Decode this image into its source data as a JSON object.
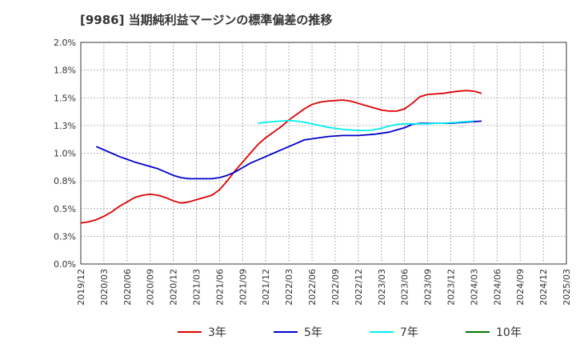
{
  "title": "[9986]  当期純利益マージンの標準偏差の推移",
  "chart_data": {
    "type": "line",
    "title": "[9986]  当期純利益マージンの標準偏差の推移",
    "x_ticks": [
      "2019/12",
      "2020/03",
      "2020/06",
      "2020/09",
      "2020/12",
      "2021/03",
      "2021/06",
      "2021/09",
      "2021/12",
      "2022/03",
      "2022/06",
      "2022/09",
      "2022/12",
      "2023/03",
      "2023/06",
      "2023/09",
      "2023/12",
      "2024/03",
      "2024/06",
      "2024/09",
      "2024/12",
      "2025/03"
    ],
    "y_ticks": [
      "0.0%",
      "0.3%",
      "0.5%",
      "0.8%",
      "1.0%",
      "1.3%",
      "1.5%",
      "1.8%",
      "2.0%"
    ],
    "ylim": [
      0,
      2.0
    ],
    "y_unit": "%",
    "grid": true,
    "legend_position": "bottom",
    "series": [
      {
        "name": "3年",
        "color": "#dd0000",
        "start_index": 0,
        "values": [
          0.37,
          0.38,
          0.4,
          0.43,
          0.47,
          0.52,
          0.56,
          0.6,
          0.62,
          0.63,
          0.62,
          0.6,
          0.57,
          0.55,
          0.56,
          0.58,
          0.6,
          0.62,
          0.67,
          0.75,
          0.84,
          0.92,
          1.0,
          1.08,
          1.14,
          1.19,
          1.24,
          1.3,
          1.35,
          1.4,
          1.44,
          1.46,
          1.47,
          1.475,
          1.48,
          1.47,
          1.45,
          1.43,
          1.41,
          1.39,
          1.38,
          1.38,
          1.4,
          1.45,
          1.51,
          1.53,
          1.535,
          1.54,
          1.55,
          1.56,
          1.565,
          1.56,
          1.54
        ]
      },
      {
        "name": "5年",
        "color": "#0000cc",
        "start_index": 2,
        "values": [
          1.06,
          1.03,
          1.0,
          0.97,
          0.945,
          0.92,
          0.9,
          0.88,
          0.86,
          0.83,
          0.8,
          0.78,
          0.77,
          0.77,
          0.77,
          0.77,
          0.78,
          0.8,
          0.83,
          0.87,
          0.91,
          0.94,
          0.97,
          1.0,
          1.03,
          1.06,
          1.09,
          1.12,
          1.13,
          1.14,
          1.15,
          1.155,
          1.16,
          1.16,
          1.16,
          1.165,
          1.17,
          1.18,
          1.19,
          1.21,
          1.23,
          1.26,
          1.27,
          1.27,
          1.27,
          1.27,
          1.27,
          1.275,
          1.28,
          1.285,
          1.29
        ]
      },
      {
        "name": "7年",
        "color": "#00eeee",
        "start_index": 23,
        "values": [
          1.27,
          1.28,
          1.285,
          1.29,
          1.295,
          1.29,
          1.28,
          1.265,
          1.25,
          1.235,
          1.225,
          1.215,
          1.21,
          1.205,
          1.205,
          1.21,
          1.225,
          1.245,
          1.26,
          1.265,
          1.265,
          1.265,
          1.265,
          1.27,
          1.27,
          1.275,
          1.28,
          1.285,
          1.29
        ]
      },
      {
        "name": "10年",
        "color": "#007700",
        "start_index": 0,
        "values": []
      }
    ]
  }
}
